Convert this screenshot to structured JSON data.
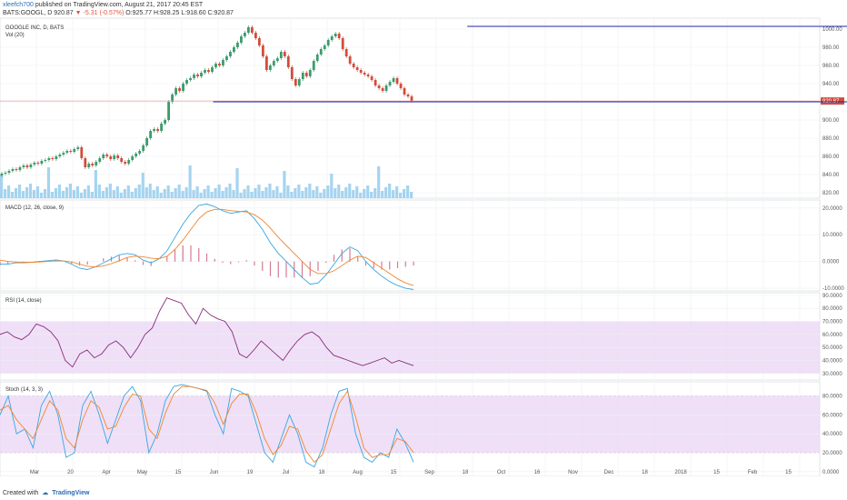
{
  "header": {
    "user": "xleefch700",
    "published": "published on TradingView.com, August 21, 2017 20:45 EST",
    "ticker": "BATS:GOOGL, D",
    "last": "920.87",
    "change": "-5.31 (-0.57%)",
    "ohlc": "O:925.77 H:928.25 L:918.60 C:920.87"
  },
  "footer": {
    "created_with": "Created with",
    "brand": "TradingView"
  },
  "colors": {
    "up": "#3c9a6c",
    "down": "#d24c3a",
    "trend": "#2124a8",
    "macd": "#3aa6e0",
    "signal": "#f0872c",
    "rsi": "#8a2b7a",
    "band": "#e9d6f5",
    "volume": "#8fc9ec",
    "price_line": "#f2a0a0"
  },
  "chart_data": [
    {
      "type": "candlestick",
      "title": "GOOGLE INC, D, BATS",
      "volume_label": "Vol (20)",
      "ylim": [
        814,
        1012
      ],
      "y_ticks": [
        "820.00",
        "840.00",
        "860.00",
        "880.00",
        "900.00",
        "920.00",
        "940.00",
        "960.00",
        "980.00",
        "1000.00"
      ],
      "last_price": "920.87",
      "x_ticks": [
        "Mar",
        "20",
        "Apr",
        "May",
        "15",
        "Jun",
        "19",
        "Jul",
        "18",
        "Aug",
        "15",
        "Sep",
        "18",
        "Oct",
        "16",
        "Nov",
        "Dec",
        "18",
        "2018",
        "15",
        "Feb",
        "15"
      ],
      "close": [
        841,
        842,
        844,
        846,
        845,
        848,
        850,
        848,
        851,
        853,
        852,
        855,
        856,
        858,
        857,
        860,
        862,
        864,
        866,
        865,
        868,
        870,
        858,
        848,
        852,
        850,
        854,
        858,
        862,
        860,
        857,
        861,
        858,
        854,
        852,
        856,
        860,
        863,
        866,
        872,
        880,
        888,
        890,
        888,
        896,
        900,
        920,
        928,
        935,
        932,
        940,
        944,
        946,
        950,
        948,
        952,
        955,
        953,
        958,
        962,
        960,
        966,
        970,
        975,
        980,
        985,
        992,
        996,
        1002,
        996,
        990,
        982,
        970,
        955,
        960,
        965,
        968,
        975,
        970,
        958,
        945,
        938,
        945,
        952,
        948,
        955,
        965,
        972,
        978,
        982,
        988,
        992,
        995,
        990,
        978,
        970,
        962,
        958,
        955,
        952,
        950,
        948,
        944,
        938,
        935,
        932,
        938,
        942,
        946,
        940,
        935,
        928,
        926,
        920.87
      ],
      "trendlines": [
        {
          "from": {
            "x": 57,
            "y": 1003
          },
          "to": {
            "x": 114,
            "y": 1003
          }
        },
        {
          "from": {
            "x": 26,
            "y": 920
          },
          "to": {
            "x": 140,
            "y": 920
          }
        }
      ]
    },
    {
      "type": "line",
      "title": "MACD (12, 26, close, 9)",
      "ylim": [
        -11,
        23
      ],
      "y_ticks": [
        "-10.0000",
        "0.0000",
        "10.0000",
        "20.0000"
      ],
      "series": [
        {
          "values": [
            -1,
            -1,
            -0.5,
            -0.5,
            -0.3,
            0,
            0.3,
            0.6,
            0.2,
            -1,
            -2.5,
            -3,
            -2,
            -0.5,
            1,
            2.5,
            3,
            2.5,
            0.5,
            -0.5,
            1,
            4,
            9,
            14,
            18,
            21,
            21.5,
            20.5,
            19,
            18,
            18.5,
            19,
            16,
            12,
            7,
            3,
            0,
            -3,
            -6,
            -8.5,
            -8,
            -5,
            -1,
            3,
            5.5,
            4,
            0,
            -3,
            -5.5,
            -7.5,
            -9,
            -10,
            -10.5
          ]
        },
        {
          "values": [
            0.5,
            0,
            -0.2,
            -0.3,
            -0.3,
            -0.2,
            0,
            0.2,
            0.2,
            -0.2,
            -1,
            -1.8,
            -2,
            -1.7,
            -0.8,
            0.3,
            1.5,
            2,
            1.8,
            1.2,
            1,
            2,
            4.5,
            8,
            12,
            16,
            18.5,
            19.5,
            19.5,
            19,
            18.8,
            18.5,
            17.5,
            15.5,
            12.5,
            9,
            6,
            3,
            0,
            -3,
            -4.5,
            -4.5,
            -3.5,
            -1.5,
            0.5,
            2,
            1.5,
            -0.5,
            -2.5,
            -4.5,
            -6.5,
            -8,
            -9
          ]
        }
      ]
    },
    {
      "type": "line",
      "title": "RSI (14, close)",
      "ylim": [
        25,
        92
      ],
      "band": [
        30,
        70
      ],
      "y_ticks": [
        "30.0000",
        "40.0000",
        "50.0000",
        "60.0000",
        "70.0000",
        "80.0000",
        "90.0000"
      ],
      "series": [
        {
          "values": [
            60,
            62,
            58,
            56,
            60,
            68,
            66,
            62,
            55,
            40,
            35,
            45,
            48,
            42,
            45,
            52,
            55,
            50,
            42,
            50,
            60,
            65,
            78,
            88,
            86,
            84,
            75,
            68,
            80,
            75,
            72,
            70,
            62,
            45,
            42,
            48,
            55,
            50,
            45,
            40,
            48,
            55,
            60,
            62,
            58,
            50,
            44,
            42,
            40,
            38,
            36,
            38,
            40,
            42,
            38,
            40,
            38,
            36
          ]
        }
      ]
    },
    {
      "type": "line",
      "title": "Stoch (14, 3, 3)",
      "ylim": [
        -5,
        95
      ],
      "band": [
        20,
        80
      ],
      "y_ticks": [
        "0.0000",
        "20.0000",
        "40.0000",
        "60.0000",
        "80.0000"
      ],
      "series": [
        {
          "values": [
            60,
            80,
            40,
            45,
            25,
            70,
            85,
            60,
            15,
            20,
            70,
            85,
            60,
            30,
            55,
            80,
            90,
            75,
            20,
            40,
            75,
            90,
            92,
            90,
            88,
            85,
            60,
            40,
            88,
            85,
            80,
            50,
            20,
            10,
            35,
            60,
            40,
            10,
            5,
            25,
            60,
            85,
            88,
            40,
            15,
            10,
            20,
            15,
            45,
            30,
            10
          ]
        },
        {
          "values": [
            65,
            70,
            55,
            45,
            35,
            55,
            75,
            65,
            35,
            25,
            55,
            75,
            68,
            45,
            48,
            68,
            82,
            80,
            45,
            35,
            62,
            82,
            90,
            90,
            88,
            86,
            72,
            50,
            72,
            82,
            82,
            62,
            35,
            18,
            28,
            48,
            45,
            22,
            10,
            18,
            45,
            72,
            85,
            58,
            25,
            15,
            18,
            18,
            35,
            32,
            20
          ]
        }
      ]
    }
  ]
}
